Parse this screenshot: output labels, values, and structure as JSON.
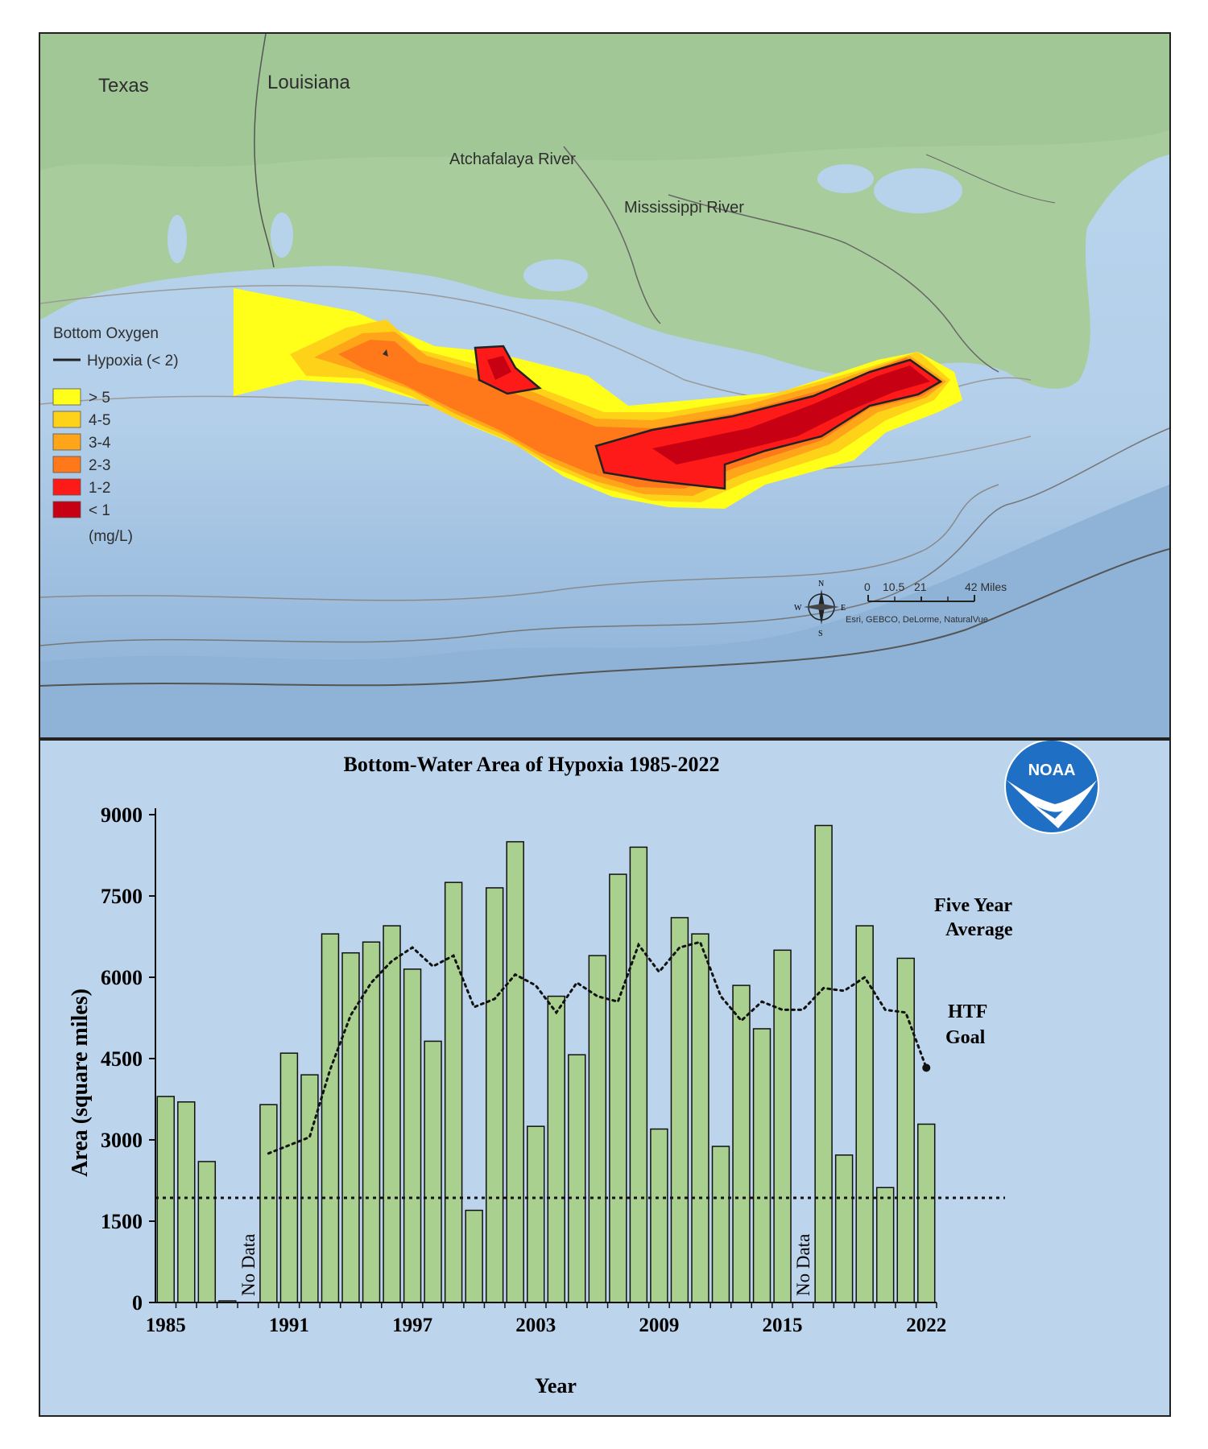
{
  "map": {
    "labels": {
      "texas": "Texas",
      "louisiana": "Louisiana",
      "atchafalaya": "Atchafalaya River",
      "mississippi": "Mississippi River"
    },
    "legend": {
      "title": "Bottom Oxygen",
      "hypoxia_line": "Hypoxia (< 2)",
      "units": "(mg/L)",
      "classes": [
        {
          "label": "> 5",
          "color": "#ffff1a"
        },
        {
          "label": "4-5",
          "color": "#ffd21a"
        },
        {
          "label": "3-4",
          "color": "#ffa51a"
        },
        {
          "label": "2-3",
          "color": "#ff781a"
        },
        {
          "label": "1-2",
          "color": "#ff1a1a"
        },
        {
          "label": "< 1",
          "color": "#c80014"
        }
      ]
    },
    "scale": {
      "ticks": [
        "0",
        "10.5",
        "21",
        "42 Miles"
      ]
    },
    "compass": {
      "n": "N",
      "s": "S",
      "e": "E",
      "w": "W"
    },
    "credits": "Esri, GEBCO, DeLorme, NaturalVue"
  },
  "logo_text": "NOAA",
  "chart_data": {
    "type": "bar",
    "title": "Bottom-Water Area of Hypoxia 1985-2022",
    "xlabel": "Year",
    "ylabel": "Area (square miles)",
    "ylim": [
      0,
      9000
    ],
    "yticks": [
      0,
      1500,
      3000,
      4500,
      6000,
      7500,
      9000
    ],
    "xtick_labels": [
      "1985",
      "1991",
      "1997",
      "2003",
      "2009",
      "2015",
      "2022"
    ],
    "years": [
      1985,
      1986,
      1987,
      1988,
      1989,
      1990,
      1991,
      1992,
      1993,
      1994,
      1995,
      1996,
      1997,
      1998,
      1999,
      2000,
      2001,
      2002,
      2003,
      2004,
      2005,
      2006,
      2007,
      2008,
      2009,
      2010,
      2011,
      2012,
      2013,
      2014,
      2015,
      2016,
      2017,
      2018,
      2019,
      2020,
      2021,
      2022
    ],
    "values": [
      3800,
      3700,
      2600,
      30,
      null,
      3650,
      4600,
      4200,
      6800,
      6450,
      6650,
      6950,
      6150,
      4820,
      7750,
      1700,
      7650,
      8500,
      3250,
      5650,
      4570,
      6400,
      7900,
      8400,
      3200,
      7100,
      6800,
      2880,
      5850,
      5050,
      6500,
      null,
      8800,
      2720,
      6950,
      2120,
      6350,
      3290
    ],
    "no_data_label": "No Data",
    "five_year_average": {
      "label_line1": "Five Year",
      "label_line2": "Average",
      "years": [
        1990,
        1991,
        1992,
        1993,
        1994,
        1995,
        1996,
        1997,
        1998,
        1999,
        2000,
        2001,
        2002,
        2003,
        2004,
        2005,
        2006,
        2007,
        2008,
        2009,
        2010,
        2011,
        2012,
        2013,
        2014,
        2015,
        2016,
        2017,
        2018,
        2019,
        2020,
        2021,
        2022
      ],
      "values": [
        2750,
        2900,
        3050,
        4300,
        5300,
        5900,
        6300,
        6550,
        6200,
        6400,
        5450,
        5600,
        6050,
        5850,
        5350,
        5900,
        5650,
        5550,
        6600,
        6100,
        6550,
        6650,
        5650,
        5200,
        5550,
        5400,
        5400,
        5800,
        5750,
        6000,
        5400,
        5350,
        4330
      ]
    },
    "htf_goal": {
      "value": 1930,
      "label_line1": "HTF",
      "label_line2": "Goal"
    },
    "colors": {
      "bar": "#a9d08e",
      "bar_stroke": "#111111",
      "background": "#bcd5ec"
    }
  }
}
